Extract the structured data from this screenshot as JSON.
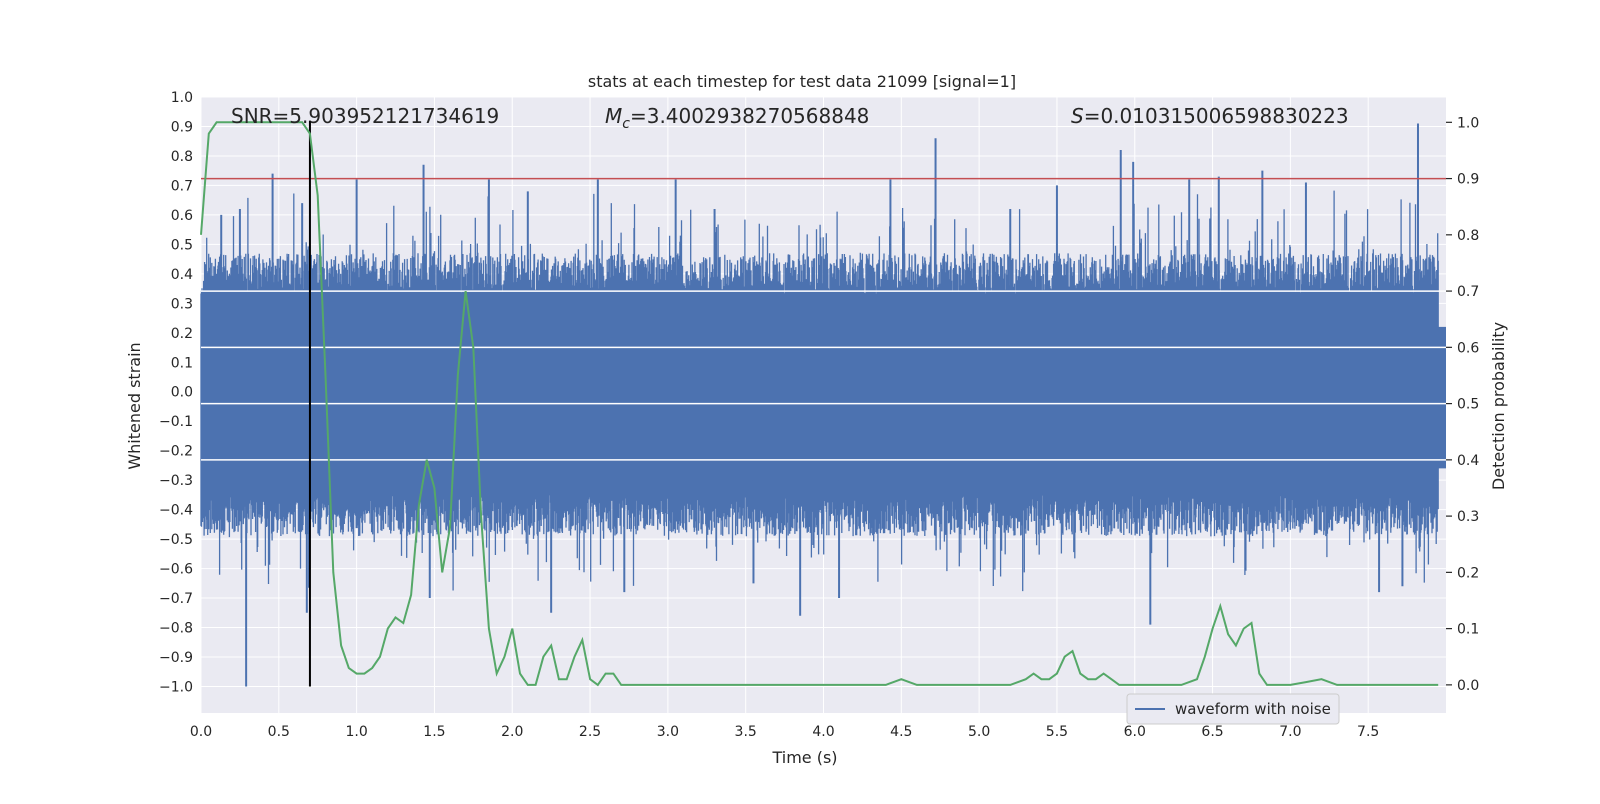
{
  "chart_data": {
    "type": "line",
    "title": "stats at each timestep for test data 21099 [signal=1]",
    "xlabel": "Time (s)",
    "ylabel_left": "Whitened strain",
    "ylabel_right": "Detection probability",
    "xlim": [
      0.0,
      8.0
    ],
    "ylim_left": [
      -1.09,
      1.0
    ],
    "ylim_right": [
      -0.05,
      1.045
    ],
    "x_ticks": [
      0.0,
      0.5,
      1.0,
      1.5,
      2.0,
      2.5,
      3.0,
      3.5,
      4.0,
      4.5,
      5.0,
      5.5,
      6.0,
      6.5,
      7.0,
      7.5
    ],
    "x_tick_labels": [
      "0.0",
      "0.5",
      "1.0",
      "1.5",
      "2.0",
      "2.5",
      "3.0",
      "3.5",
      "4.0",
      "4.5",
      "5.0",
      "5.5",
      "6.0",
      "6.5",
      "7.0",
      "7.5"
    ],
    "y_left_ticks": [
      1.0,
      0.9,
      0.8,
      0.7,
      0.6,
      0.5,
      0.4,
      0.3,
      0.2,
      0.1,
      0.0,
      -0.1,
      -0.2,
      -0.3,
      -0.4,
      -0.5,
      -0.6,
      -0.7,
      -0.8,
      -0.9,
      -1.0
    ],
    "y_left_tick_labels": [
      "1.0",
      "0.9",
      "0.8",
      "0.7",
      "0.6",
      "0.5",
      "0.4",
      "0.3",
      "0.2",
      "0.1",
      "0.0",
      "−0.1",
      "−0.2",
      "−0.3",
      "−0.4",
      "−0.5",
      "−0.6",
      "−0.7",
      "−0.8",
      "−0.9",
      "−1.0"
    ],
    "y_right_ticks": [
      1.0,
      0.9,
      0.8,
      0.7,
      0.6,
      0.5,
      0.4,
      0.3,
      0.2,
      0.1,
      0.0
    ],
    "y_right_tick_labels": [
      "1.0",
      "0.9",
      "0.8",
      "0.7",
      "0.6",
      "0.5",
      "0.4",
      "0.3",
      "0.2",
      "0.1",
      "0.0"
    ],
    "annotations": {
      "snr": "SNR=5.903952121734619",
      "mc_prefix": "M",
      "mc_sub": "c",
      "mc_value": "=3.4002938270568848",
      "s_prefix": "S",
      "s_value": "=0.010315006598830223"
    },
    "threshold_line": {
      "axis": "right",
      "value": 0.9,
      "color": "#c44e52"
    },
    "event_marker": {
      "x": 0.7,
      "ymin": -1.0,
      "ymax": 0.92,
      "color": "#000000"
    },
    "legend": {
      "position": "lower-right",
      "entries": [
        "waveform with noise"
      ]
    },
    "series": [
      {
        "name": "waveform with noise",
        "axis": "left",
        "color": "#4c72b0",
        "band_high": 0.33,
        "band_low": -0.35,
        "spikes": [
          {
            "x": 0.29,
            "y": -1.0
          },
          {
            "x": 0.13,
            "y": 0.6
          },
          {
            "x": 0.25,
            "y": 0.62
          },
          {
            "x": 0.46,
            "y": 0.74
          },
          {
            "x": 0.65,
            "y": 0.64
          },
          {
            "x": 0.68,
            "y": -0.75
          },
          {
            "x": 1.0,
            "y": 0.72
          },
          {
            "x": 1.43,
            "y": 0.77
          },
          {
            "x": 1.47,
            "y": -0.7
          },
          {
            "x": 1.85,
            "y": 0.72
          },
          {
            "x": 2.1,
            "y": 0.68
          },
          {
            "x": 2.25,
            "y": -0.75
          },
          {
            "x": 2.55,
            "y": 0.72
          },
          {
            "x": 2.72,
            "y": -0.68
          },
          {
            "x": 3.05,
            "y": 0.72
          },
          {
            "x": 3.3,
            "y": 0.62
          },
          {
            "x": 3.55,
            "y": -0.65
          },
          {
            "x": 3.85,
            "y": -0.76
          },
          {
            "x": 4.1,
            "y": -0.7
          },
          {
            "x": 4.43,
            "y": 0.72
          },
          {
            "x": 4.72,
            "y": 0.86
          },
          {
            "x": 5.2,
            "y": 0.62
          },
          {
            "x": 5.5,
            "y": 0.7
          },
          {
            "x": 5.91,
            "y": 0.82
          },
          {
            "x": 5.99,
            "y": 0.78
          },
          {
            "x": 6.1,
            "y": -0.79
          },
          {
            "x": 6.35,
            "y": 0.72
          },
          {
            "x": 6.54,
            "y": 0.73
          },
          {
            "x": 6.82,
            "y": 0.75
          },
          {
            "x": 7.1,
            "y": 0.71
          },
          {
            "x": 7.57,
            "y": -0.68
          },
          {
            "x": 7.72,
            "y": -0.66
          },
          {
            "x": 7.82,
            "y": 0.91
          }
        ]
      },
      {
        "name": "detection probability",
        "axis": "right",
        "color": "#55a868",
        "x": [
          0.0,
          0.05,
          0.1,
          0.2,
          0.3,
          0.4,
          0.5,
          0.6,
          0.65,
          0.7,
          0.75,
          0.8,
          0.85,
          0.9,
          0.95,
          1.0,
          1.05,
          1.1,
          1.15,
          1.2,
          1.25,
          1.3,
          1.35,
          1.4,
          1.45,
          1.5,
          1.55,
          1.6,
          1.65,
          1.7,
          1.75,
          1.8,
          1.85,
          1.9,
          1.95,
          2.0,
          2.05,
          2.1,
          2.15,
          2.2,
          2.25,
          2.3,
          2.35,
          2.4,
          2.45,
          2.5,
          2.55,
          2.6,
          2.65,
          2.7,
          2.75,
          2.8,
          2.85,
          2.9,
          3.0,
          3.1,
          3.2,
          3.3,
          3.4,
          3.5,
          3.6,
          3.7,
          3.8,
          3.9,
          4.0,
          4.1,
          4.2,
          4.3,
          4.4,
          4.45,
          4.5,
          4.55,
          4.6,
          4.7,
          4.8,
          4.9,
          5.0,
          5.1,
          5.2,
          5.3,
          5.35,
          5.4,
          5.45,
          5.5,
          5.55,
          5.6,
          5.65,
          5.7,
          5.75,
          5.8,
          5.85,
          5.9,
          6.0,
          6.1,
          6.2,
          6.3,
          6.4,
          6.45,
          6.5,
          6.55,
          6.6,
          6.65,
          6.7,
          6.75,
          6.8,
          6.85,
          6.9,
          6.95,
          7.0,
          7.1,
          7.2,
          7.3,
          7.4,
          7.5,
          7.6,
          7.7,
          7.8,
          7.95
        ],
        "y": [
          0.8,
          0.98,
          1.0,
          1.0,
          1.0,
          1.0,
          1.0,
          1.0,
          1.0,
          0.98,
          0.87,
          0.55,
          0.2,
          0.07,
          0.03,
          0.02,
          0.02,
          0.03,
          0.05,
          0.1,
          0.12,
          0.11,
          0.16,
          0.32,
          0.4,
          0.35,
          0.2,
          0.28,
          0.55,
          0.7,
          0.6,
          0.3,
          0.1,
          0.02,
          0.05,
          0.1,
          0.02,
          0.0,
          0.0,
          0.05,
          0.07,
          0.01,
          0.01,
          0.05,
          0.08,
          0.01,
          0.0,
          0.02,
          0.02,
          0.0,
          0.0,
          0.0,
          0.0,
          0.0,
          0.0,
          0.0,
          0.0,
          0.0,
          0.0,
          0.0,
          0.0,
          0.0,
          0.0,
          0.0,
          0.0,
          0.0,
          0.0,
          0.0,
          0.0,
          0.005,
          0.01,
          0.005,
          0.0,
          0.0,
          0.0,
          0.0,
          0.0,
          0.0,
          0.0,
          0.01,
          0.02,
          0.01,
          0.01,
          0.02,
          0.05,
          0.06,
          0.02,
          0.01,
          0.01,
          0.02,
          0.01,
          0.0,
          0.0,
          0.0,
          0.0,
          0.0,
          0.01,
          0.05,
          0.1,
          0.14,
          0.09,
          0.07,
          0.1,
          0.11,
          0.02,
          0.0,
          0.0,
          0.0,
          0.0,
          0.005,
          0.01,
          0.0,
          0.0,
          0.0,
          0.0,
          0.0,
          0.0,
          0.0
        ]
      }
    ]
  }
}
